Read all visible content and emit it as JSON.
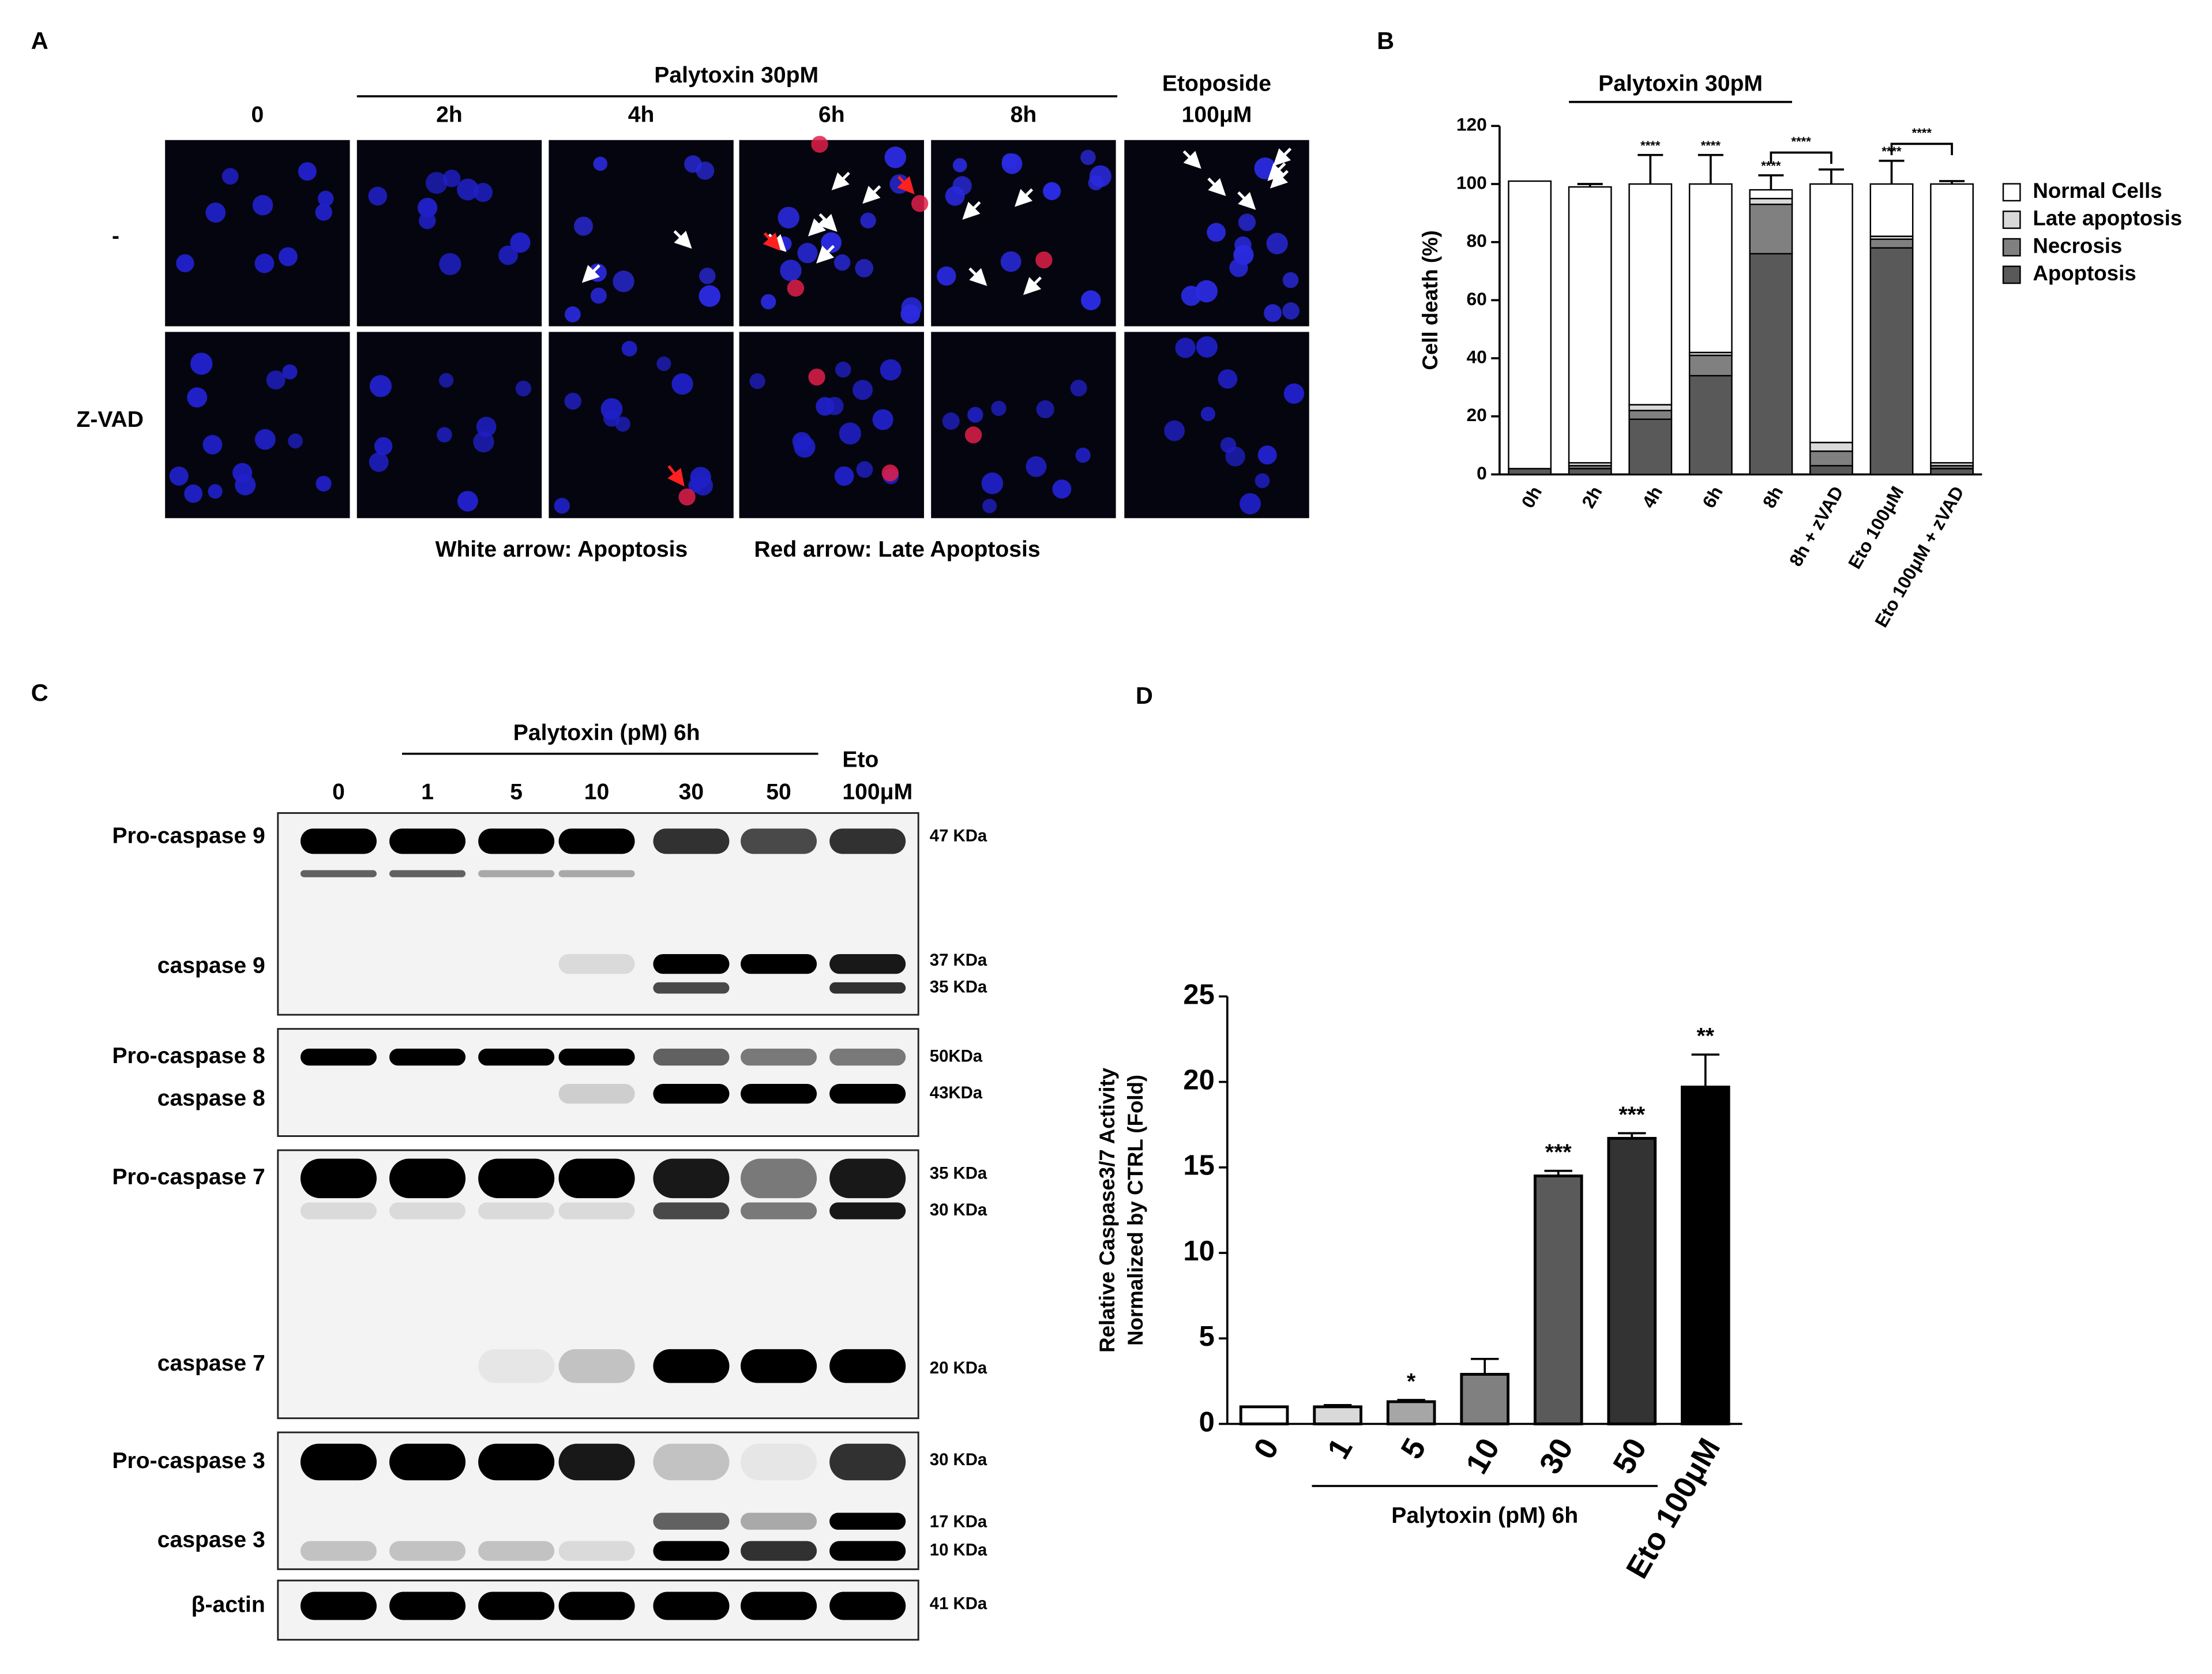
{
  "panel_a": {
    "label": "A",
    "header": "Palytoxin 30pM",
    "columns": [
      "0",
      "2h",
      "4h",
      "6h",
      "8h"
    ],
    "etoposide": [
      "Etoposide",
      "100μM"
    ],
    "rows": [
      "-",
      "Z-VAD"
    ],
    "legend_white": "White arrow: Apoptosis",
    "legend_red": "Red arrow: Late Apoptosis"
  },
  "panel_c": {
    "label": "C",
    "header": "Palytoxin (pM) 6h",
    "lanes": [
      "0",
      "1",
      "5",
      "10",
      "30",
      "50"
    ],
    "eto": [
      "Eto",
      "100μM"
    ],
    "blots": [
      {
        "labels": [
          "Pro-caspase 9",
          "caspase 9"
        ],
        "markers": [
          "47 KDa",
          "37 KDa",
          "35 KDa"
        ]
      },
      {
        "labels": [
          "Pro-caspase 8",
          "caspase 8"
        ],
        "markers": [
          "50KDa",
          "43KDa"
        ]
      },
      {
        "labels": [
          "Pro-caspase 7",
          "caspase 7"
        ],
        "markers": [
          "35 KDa",
          "30 KDa",
          "20 KDa"
        ]
      },
      {
        "labels": [
          "Pro-caspase 3",
          "caspase 3"
        ],
        "markers": [
          "30 KDa",
          "17 KDa",
          "10 KDa"
        ]
      },
      {
        "labels": [
          "β-actin"
        ],
        "markers": [
          "41 KDa"
        ]
      }
    ]
  },
  "chart_data": [
    {
      "type": "bar",
      "panel": "B",
      "stacked": true,
      "group": {
        "label": "Palytoxin 30pM",
        "from": 1,
        "to": 4
      },
      "ylabel": "Cell death (%)",
      "categories": [
        "0h",
        "2h",
        "4h",
        "6h",
        "8h",
        "8h + zVAD",
        "Eto 100μM",
        "Eto 100μM + zVAD"
      ],
      "series": [
        {
          "name": "Normal Cells",
          "color": "#ffffff",
          "values": [
            99,
            95,
            76,
            58,
            3,
            89,
            18,
            96
          ],
          "errors": [
            0,
            1,
            10,
            10,
            5,
            5,
            8,
            1
          ]
        },
        {
          "name": "Late apoptosis",
          "color": "#d9d9d9",
          "values": [
            0,
            1,
            2,
            1,
            2,
            3,
            1,
            1
          ]
        },
        {
          "name": "Necrosis",
          "color": "#808080",
          "values": [
            0,
            1,
            3,
            7,
            17,
            5,
            3,
            1
          ]
        },
        {
          "name": "Apoptosis",
          "color": "#595959",
          "values": [
            2,
            2,
            19,
            34,
            76,
            3,
            78,
            2
          ]
        }
      ],
      "significance": [
        null,
        null,
        "****",
        "****",
        "****",
        null,
        "****",
        null
      ],
      "comparisons": [
        {
          "from": 4,
          "to": 5,
          "label": "****"
        },
        {
          "from": 6,
          "to": 7,
          "label": "****"
        }
      ],
      "ylim": [
        0,
        120
      ],
      "yticks": [
        0,
        20,
        40,
        60,
        80,
        100,
        120
      ],
      "legend": "right"
    },
    {
      "type": "bar",
      "panel": "D",
      "stacked": false,
      "group": {
        "label": "Palytoxin (pM) 6h",
        "from": 1,
        "to": 5
      },
      "ylabel": [
        "Relative Caspase3/7  Activity",
        "Normalized by CTRL (Fold)"
      ],
      "categories": [
        "0",
        "1",
        "5",
        "10",
        "30",
        "50",
        "Eto 100μM"
      ],
      "values": [
        1,
        1,
        1.3,
        2.9,
        14.5,
        16.7,
        19.7
      ],
      "errors": [
        0,
        0.1,
        0.1,
        0.9,
        0.3,
        0.3,
        1.9
      ],
      "colors": [
        "#ffffff",
        "#d9d9d9",
        "#a6a6a6",
        "#808080",
        "#5a5a5a",
        "#333333",
        "#000000"
      ],
      "significance": [
        null,
        null,
        "*",
        null,
        "***",
        "***",
        "**"
      ],
      "ylim": [
        0,
        25
      ],
      "yticks": [
        0,
        5,
        10,
        15,
        20,
        25
      ]
    }
  ]
}
